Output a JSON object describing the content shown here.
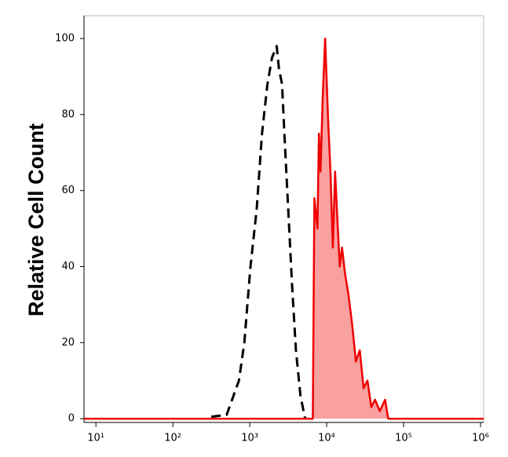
{
  "chart_data": {
    "type": "line",
    "y_label": "Relative Cell Count",
    "xscale": "log",
    "xlim": [
      7,
      1100000
    ],
    "ylim": [
      -1,
      106
    ],
    "xticks": [
      {
        "value": 10,
        "label": "10¹"
      },
      {
        "value": 100,
        "label": "10²"
      },
      {
        "value": 1000,
        "label": "10³"
      },
      {
        "value": 10000,
        "label": "10⁴"
      },
      {
        "value": 100000,
        "label": "10⁵"
      },
      {
        "value": 1000000,
        "label": "10⁶"
      }
    ],
    "yticks": [
      0,
      20,
      40,
      60,
      80,
      100
    ],
    "series": [
      {
        "color": "#000000",
        "dash": true,
        "fill": null,
        "x": [
          316,
          501,
          724,
          851,
          1023,
          1230,
          1445,
          1698,
          1950,
          2239,
          2399,
          2630,
          2818,
          3162,
          3548,
          3981,
          4571,
          5248
        ],
        "values": [
          0.5,
          1,
          10,
          20,
          40,
          55,
          75,
          88,
          95,
          98,
          92,
          88,
          75,
          55,
          35,
          18,
          6,
          0
        ]
      },
      {
        "color": "#ee0000",
        "dash": false,
        "fill": "#f9a0a0",
        "x": [
          7,
          6607,
          6918,
          7586,
          7943,
          8318,
          8913,
          9550,
          10471,
          11220,
          12023,
          12882,
          13804,
          14791,
          15849,
          17378,
          19055,
          21380,
          23988,
          26915,
          30200,
          33884,
          38019,
          42658,
          48978,
          57544,
          63096,
          1100000
        ],
        "values": [
          0,
          0,
          58,
          50,
          75,
          65,
          85,
          100,
          78,
          65,
          45,
          65,
          52,
          40,
          45,
          38,
          33,
          25,
          15,
          18,
          8,
          10,
          3,
          5,
          2,
          5,
          0,
          0
        ]
      }
    ]
  }
}
